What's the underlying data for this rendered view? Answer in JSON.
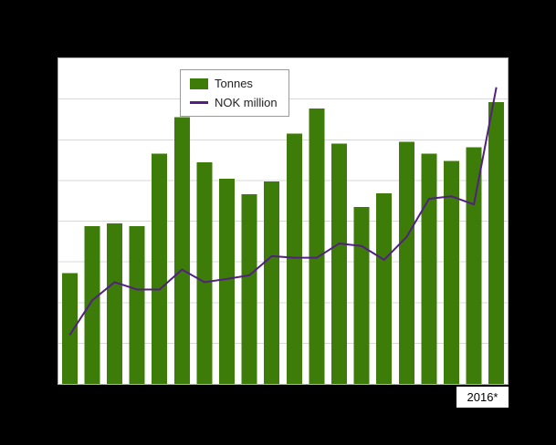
{
  "colors": {
    "background": "#000000",
    "plot_background": "#ffffff",
    "gridline": "#d8d8d8",
    "axis_border": "#b0b0b0",
    "bar_color": "#3e7c09",
    "line_color": "#522080"
  },
  "legend": {
    "position": "top-center",
    "items": [
      {
        "label": "Tonnes",
        "marker": "bar-swatch-icon",
        "color": "#3e7c09"
      },
      {
        "label": "NOK million",
        "marker": "line-swatch-icon",
        "color": "#522080"
      }
    ]
  },
  "x_axis": {
    "visible_tick_label": "2016*"
  },
  "chart_data": {
    "type": "bar",
    "title": "",
    "xlabel": "",
    "ylabel": "",
    "categories": [
      "",
      "",
      "",
      "",
      "",
      "",
      "",
      "",
      "",
      "",
      "",
      "",
      "",
      "",
      "",
      "",
      "",
      "",
      "",
      "2016*"
    ],
    "x_tick_labels_visible": [
      "2016*"
    ],
    "y_axis_labels_visible": false,
    "series": [
      {
        "name": "Tonnes",
        "type": "bar",
        "color": "#3e7c09",
        "values": [
          27.2,
          38.8,
          39.4,
          38.8,
          56.6,
          65.5,
          54.4,
          50.4,
          46.6,
          49.7,
          61.5,
          67.7,
          59.1,
          43.5,
          46.8,
          59.5,
          56.6,
          54.8,
          58.2,
          69.3
        ]
      },
      {
        "name": "NOK million",
        "type": "line",
        "color": "#522080",
        "values": [
          12.0,
          20.5,
          25.0,
          23.2,
          23.2,
          28.1,
          25.0,
          25.8,
          26.7,
          31.4,
          31.0,
          31.0,
          34.5,
          33.9,
          30.5,
          36.1,
          45.5,
          46.1,
          44.1,
          72.9
        ]
      }
    ],
    "ylim": [
      0,
      80
    ],
    "grid": true,
    "grid_step": 10,
    "legend_position": "top-center"
  }
}
